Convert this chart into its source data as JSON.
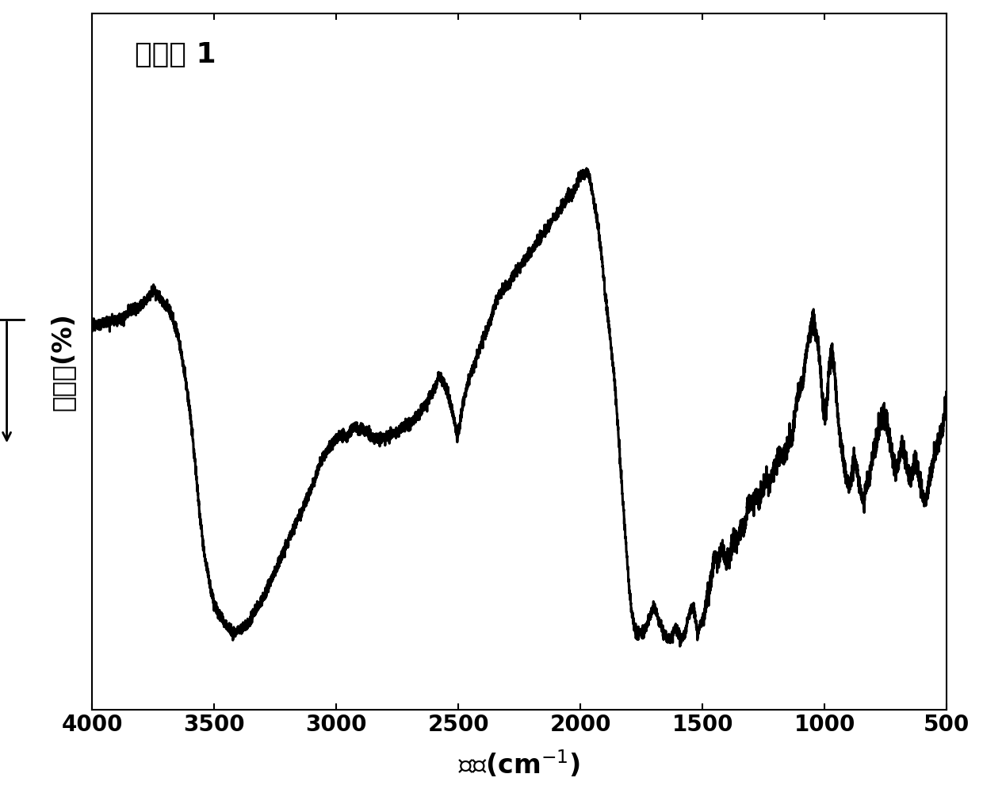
{
  "title": "化合物 1",
  "xlabel": "波数(cm$^{-1}$)",
  "ylabel": "透过率(%)",
  "xlim": [
    4000,
    500
  ],
  "ylim": [
    0,
    100
  ],
  "background_color": "#ffffff",
  "line_color": "#000000",
  "title_fontsize": 26,
  "label_fontsize": 24,
  "tick_fontsize": 20,
  "xticks": [
    4000,
    3500,
    3000,
    2500,
    2000,
    1500,
    1000,
    500
  ],
  "line_width": 2.2
}
